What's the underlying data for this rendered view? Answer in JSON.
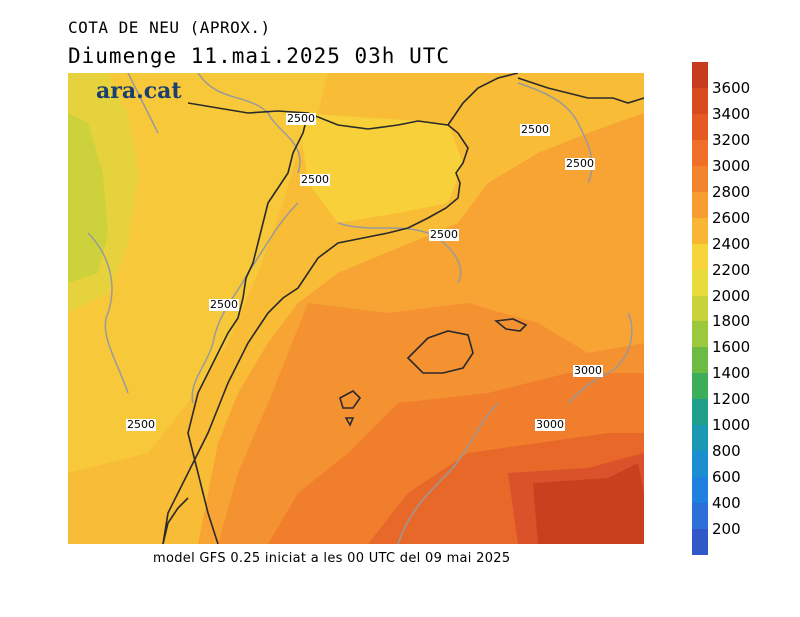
{
  "title": "COTA DE NEU (APROX.)",
  "subtitle": "Diumenge  11.mai.2025 03h UTC",
  "logo": "ara.cat",
  "footer": "model GFS 0.25 iniciat a les 00 UTC del 09 mai 2025",
  "map": {
    "contour_labels": [
      "2500",
      "2500",
      "2500",
      "2500",
      "2500",
      "2500",
      "2500",
      "3000",
      "3000"
    ]
  },
  "colorbar": {
    "labels": [
      "3600",
      "3400",
      "3200",
      "3000",
      "2800",
      "2600",
      "2400",
      "2200",
      "2000",
      "1800",
      "1600",
      "1400",
      "1200",
      "1000",
      "800",
      "600",
      "400",
      "200"
    ],
    "colors": [
      "#c83c1e",
      "#d84a1e",
      "#e55a22",
      "#f06e28",
      "#f4842c",
      "#f79c30",
      "#f8b634",
      "#f7d43a",
      "#e8dc3c",
      "#c8d23a",
      "#9cc83c",
      "#6cbc44",
      "#3cae5a",
      "#20a08c",
      "#1c98b4",
      "#1c8ed2",
      "#2080e0",
      "#2c6ed8",
      "#3058c8"
    ],
    "unit": ""
  }
}
